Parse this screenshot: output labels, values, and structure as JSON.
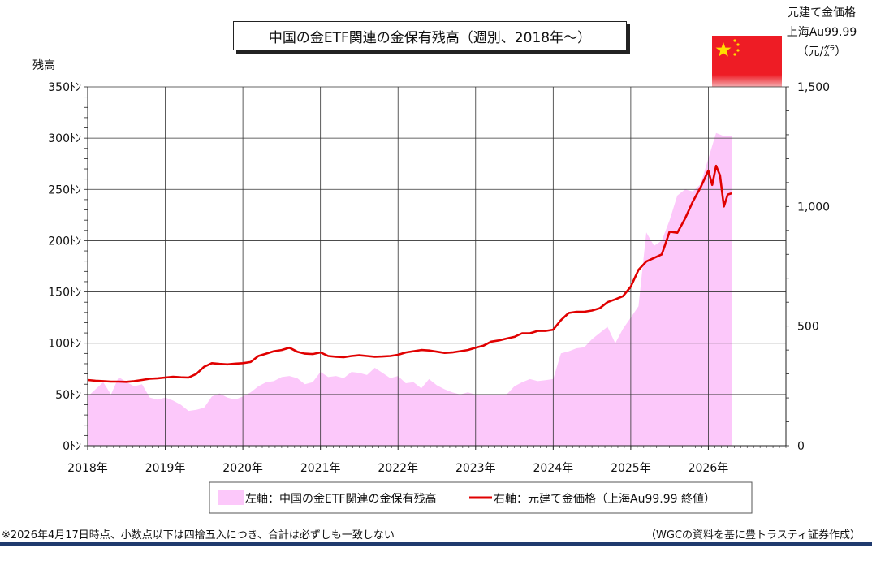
{
  "header": {
    "title": "中国の金ETF関連の金保有残高（週別、2018年〜）",
    "left_unit": "残高",
    "right_unit_line1": "元建て金価格",
    "right_unit_line2": "上海Au99.99",
    "right_unit_line3": "（元/㌘）"
  },
  "footer": {
    "note": "※2026年4月17日時点、小数点以下は四捨五入につき、合計は必ずしも一致しない",
    "source": "（WGCの資料を基に豊トラスティ証券作成）"
  },
  "colors": {
    "area": "#fcc8fa",
    "line": "#e00000",
    "grid": "#333333",
    "flag_red": "#ee1c25",
    "flag_star": "#ffde00",
    "rule": "#1f3a6e"
  },
  "chart_data": {
    "type": "area",
    "title": "中国の金ETF関連の金保有残高（週別、2018年〜）",
    "x_ticks": [
      "2018年",
      "2019年",
      "2020年",
      "2021年",
      "2022年",
      "2023年",
      "2024年",
      "2025年",
      "2026年"
    ],
    "xlim": [
      2018.0,
      2027.0
    ],
    "y_left": {
      "label": "残高",
      "ticks": [
        "0ﾄﾝ",
        "50ﾄﾝ",
        "100ﾄﾝ",
        "150ﾄﾝ",
        "200ﾄﾝ",
        "250ﾄﾝ",
        "300ﾄﾝ",
        "350ﾄﾝ"
      ],
      "ylim": [
        0,
        350
      ]
    },
    "y_right": {
      "label": "元建て金価格 上海Au99.99（元/㌘）",
      "ticks": [
        "0",
        "500",
        "1,000",
        "1,500"
      ],
      "ylim": [
        0,
        1500
      ]
    },
    "grid": true,
    "legend_position": "bottom",
    "series": [
      {
        "name": "左軸：中国の金ETF関連の金保有残高",
        "axis": "left",
        "type": "area",
        "x": [
          2018.0,
          2018.1,
          2018.2,
          2018.3,
          2018.4,
          2018.5,
          2018.6,
          2018.7,
          2018.8,
          2018.9,
          2019.0,
          2019.1,
          2019.2,
          2019.3,
          2019.4,
          2019.5,
          2019.6,
          2019.7,
          2019.8,
          2019.9,
          2020.0,
          2020.1,
          2020.2,
          2020.3,
          2020.4,
          2020.5,
          2020.6,
          2020.7,
          2020.8,
          2020.9,
          2021.0,
          2021.1,
          2021.2,
          2021.3,
          2021.4,
          2021.5,
          2021.6,
          2021.7,
          2021.8,
          2021.9,
          2022.0,
          2022.1,
          2022.2,
          2022.3,
          2022.4,
          2022.5,
          2022.6,
          2022.7,
          2022.8,
          2022.9,
          2023.0,
          2023.1,
          2023.2,
          2023.3,
          2023.4,
          2023.5,
          2023.6,
          2023.7,
          2023.8,
          2023.9,
          2024.0,
          2024.1,
          2024.2,
          2024.3,
          2024.4,
          2024.5,
          2024.6,
          2024.7,
          2024.8,
          2024.9,
          2025.0,
          2025.1,
          2025.2,
          2025.3,
          2025.4,
          2025.5,
          2025.6,
          2025.7,
          2025.8,
          2025.9,
          2026.0,
          2026.1,
          2026.2,
          2026.3
        ],
        "values": [
          48,
          55,
          62,
          50,
          67,
          62,
          58,
          60,
          47,
          45,
          47,
          44,
          40,
          34,
          35,
          37,
          48,
          51,
          47,
          45,
          48,
          52,
          58,
          62,
          63,
          67,
          68,
          66,
          60,
          62,
          72,
          67,
          68,
          66,
          72,
          71,
          69,
          76,
          71,
          66,
          68,
          61,
          62,
          56,
          65,
          59,
          55,
          52,
          50,
          52,
          50,
          50,
          50,
          50,
          50,
          58,
          62,
          65,
          63,
          64,
          65,
          90,
          92,
          95,
          96,
          104,
          110,
          116,
          100,
          114,
          125,
          136,
          208,
          195,
          200,
          220,
          244,
          250,
          248,
          255,
          280,
          305,
          302,
          302
        ]
      },
      {
        "name": "右軸：元建て金価格（上海Au99.99 終値）",
        "axis": "right",
        "type": "line",
        "x": [
          2018.0,
          2018.1,
          2018.2,
          2018.3,
          2018.4,
          2018.5,
          2018.6,
          2018.7,
          2018.8,
          2018.9,
          2019.0,
          2019.1,
          2019.2,
          2019.3,
          2019.4,
          2019.5,
          2019.6,
          2019.7,
          2019.8,
          2019.9,
          2020.0,
          2020.1,
          2020.2,
          2020.3,
          2020.4,
          2020.5,
          2020.6,
          2020.7,
          2020.8,
          2020.9,
          2021.0,
          2021.1,
          2021.2,
          2021.3,
          2021.4,
          2021.5,
          2021.6,
          2021.7,
          2021.8,
          2021.9,
          2022.0,
          2022.1,
          2022.2,
          2022.3,
          2022.4,
          2022.5,
          2022.6,
          2022.7,
          2022.8,
          2022.9,
          2023.0,
          2023.1,
          2023.2,
          2023.3,
          2023.4,
          2023.5,
          2023.6,
          2023.7,
          2023.8,
          2023.9,
          2024.0,
          2024.1,
          2024.2,
          2024.3,
          2024.4,
          2024.5,
          2024.6,
          2024.7,
          2024.8,
          2024.9,
          2025.0,
          2025.1,
          2025.2,
          2025.3,
          2025.4,
          2025.5,
          2025.6,
          2025.7,
          2025.8,
          2025.9,
          2026.0,
          2026.05,
          2026.1,
          2026.15,
          2026.2,
          2026.25,
          2026.3
        ],
        "values": [
          275,
          272,
          270,
          268,
          268,
          267,
          270,
          275,
          280,
          282,
          285,
          288,
          286,
          285,
          300,
          330,
          345,
          342,
          340,
          343,
          345,
          350,
          375,
          385,
          395,
          400,
          410,
          393,
          385,
          383,
          390,
          375,
          372,
          370,
          375,
          378,
          375,
          372,
          373,
          375,
          380,
          390,
          395,
          400,
          398,
          393,
          388,
          390,
          395,
          400,
          410,
          418,
          435,
          440,
          448,
          455,
          470,
          470,
          480,
          480,
          485,
          525,
          555,
          560,
          560,
          565,
          575,
          600,
          612,
          625,
          665,
          735,
          770,
          785,
          800,
          895,
          890,
          950,
          1020,
          1080,
          1150,
          1090,
          1170,
          1130,
          1000,
          1050,
          1055
        ]
      }
    ]
  }
}
